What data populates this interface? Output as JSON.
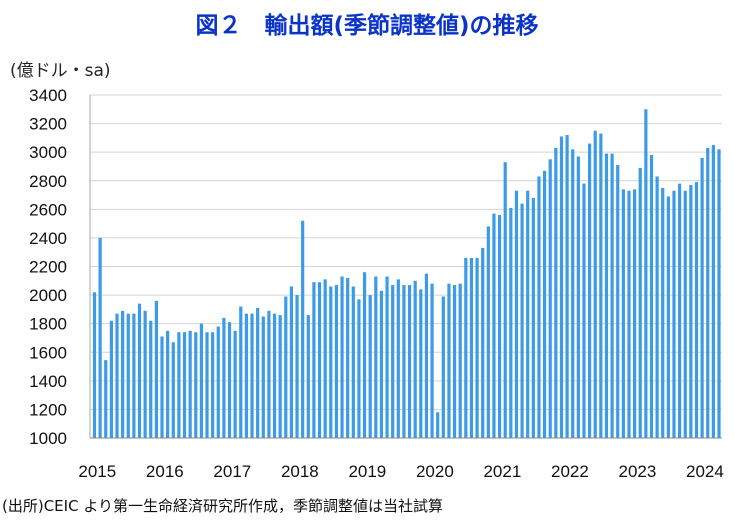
{
  "chart_data": {
    "type": "bar",
    "title": "図２　輸出額(季節調整値)の推移",
    "ylabel": "(億ドル・sa)",
    "note": "(出所)CEIC より第一生命経済研究所作成，季節調整値は当社試算",
    "ylim": [
      1000,
      3400
    ],
    "yticks": [
      1000,
      1200,
      1400,
      1600,
      1800,
      2000,
      2200,
      2400,
      2600,
      2800,
      3000,
      3200,
      3400
    ],
    "xtick_labels": [
      "2015",
      "2016",
      "2017",
      "2018",
      "2019",
      "2020",
      "2021",
      "2022",
      "2023",
      "2024"
    ],
    "grid": "y",
    "bar_color": "#3c9be6",
    "start": "2015-01",
    "frequency": "monthly",
    "values": [
      2020,
      2400,
      1545,
      1820,
      1870,
      1890,
      1870,
      1870,
      1940,
      1890,
      1820,
      1960,
      1710,
      1750,
      1670,
      1740,
      1740,
      1750,
      1740,
      1800,
      1740,
      1740,
      1780,
      1840,
      1810,
      1750,
      1920,
      1870,
      1870,
      1910,
      1850,
      1890,
      1870,
      1860,
      1990,
      2060,
      2000,
      2520,
      1860,
      2090,
      2090,
      2110,
      2060,
      2070,
      2130,
      2120,
      2060,
      1970,
      2160,
      2000,
      2130,
      2030,
      2130,
      2070,
      2110,
      2070,
      2070,
      2100,
      2040,
      2150,
      2080,
      1180,
      1990,
      2080,
      2070,
      2080,
      2260,
      2260,
      2260,
      2330,
      2480,
      2570,
      2560,
      2930,
      2610,
      2730,
      2640,
      2730,
      2680,
      2830,
      2870,
      2950,
      3030,
      3110,
      3120,
      3020,
      2970,
      2780,
      3060,
      3150,
      3130,
      2990,
      2990,
      2910,
      2740,
      2730,
      2740,
      2890,
      3300,
      2980,
      2830,
      2750,
      2690,
      2730,
      2780,
      2730,
      2770,
      2790,
      2960,
      3030,
      3050,
      3020
    ]
  }
}
